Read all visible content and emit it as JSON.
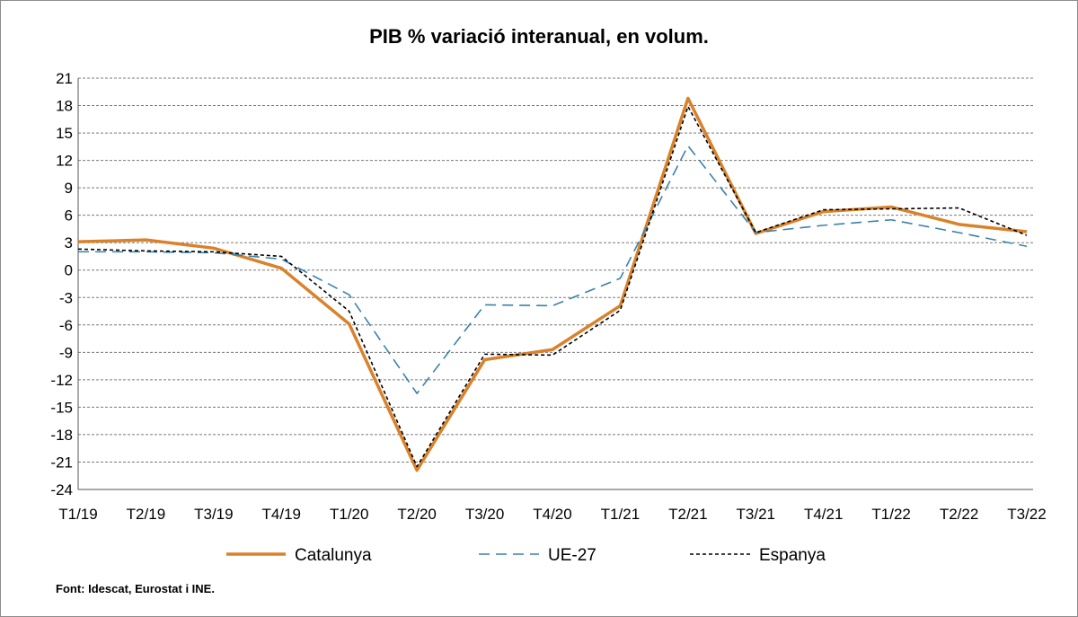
{
  "title": "PIB % variació interanual, en volum.",
  "source": "Font: Idescat, Eurostat i INE.",
  "chart_data": {
    "type": "line",
    "title": "PIB % variació interanual, en volum.",
    "xlabel": "",
    "ylabel": "",
    "categories": [
      "T1/19",
      "T2/19",
      "T3/19",
      "T4/19",
      "T1/20",
      "T2/20",
      "T3/20",
      "T4/20",
      "T1/21",
      "T2/21",
      "T3/21",
      "T4/21",
      "T1/22",
      "T2/22",
      "T3/22"
    ],
    "ylim": [
      -24,
      21
    ],
    "yticks": [
      21,
      18,
      15,
      12,
      9,
      6,
      3,
      0,
      -3,
      -6,
      -9,
      -12,
      -15,
      -18,
      -21,
      -24
    ],
    "grid": true,
    "legend_position": "bottom",
    "series": [
      {
        "name": "Catalunya",
        "color": "#d9822b",
        "style": "solid",
        "values": [
          3.1,
          3.3,
          2.4,
          0.2,
          -5.9,
          -21.9,
          -9.8,
          -8.7,
          -3.9,
          18.8,
          4.0,
          6.4,
          6.9,
          5.0,
          4.2
        ]
      },
      {
        "name": "UE-27",
        "color": "#3a82aa",
        "style": "dashed",
        "values": [
          2.0,
          2.0,
          1.9,
          1.2,
          -2.7,
          -13.5,
          -3.8,
          -3.9,
          -0.9,
          13.6,
          4.1,
          4.9,
          5.5,
          4.1,
          2.6
        ]
      },
      {
        "name": "Espanya",
        "color": "#000000",
        "style": "dotted",
        "values": [
          2.3,
          2.1,
          2.0,
          1.5,
          -4.5,
          -21.5,
          -9.2,
          -9.3,
          -4.4,
          17.9,
          4.1,
          6.6,
          6.7,
          6.8,
          3.8
        ]
      }
    ]
  }
}
